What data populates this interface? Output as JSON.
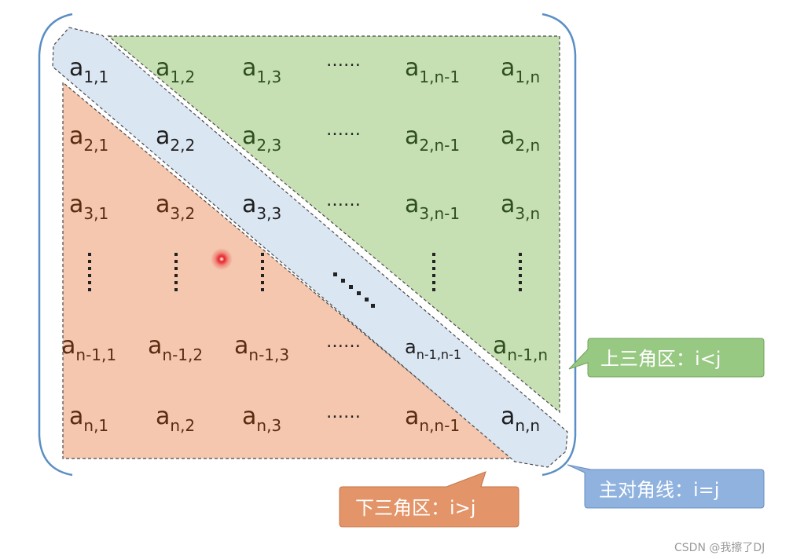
{
  "colors": {
    "upper_fill": "#c6e0b4",
    "lower_fill": "#f4c7ae",
    "diag_fill": "#dbe6f3",
    "bracket": "#5b8ec4",
    "dash": "#4a4a4a",
    "upper_text": "#2f4f1f",
    "lower_text": "#5a2d12",
    "diag_text": "#1f1f1f",
    "callout_upper": "#98c983",
    "callout_diag": "#8fb2df",
    "callout_lower": "#e39468",
    "pointer": "#e8232a"
  },
  "matrix": {
    "cells": [
      {
        "name": "cell-a-1-1",
        "base": "a",
        "sub": "1,1",
        "region": "diag"
      },
      {
        "name": "cell-a-1-2",
        "base": "a",
        "sub": "1,2",
        "region": "upper"
      },
      {
        "name": "cell-a-1-3",
        "base": "a",
        "sub": "1,3",
        "region": "upper"
      },
      {
        "name": "cell-a-1-n-1",
        "base": "a",
        "sub": "1,n-1",
        "region": "upper"
      },
      {
        "name": "cell-a-1-n",
        "base": "a",
        "sub": "1,n",
        "region": "upper"
      },
      {
        "name": "cell-a-2-1",
        "base": "a",
        "sub": "2,1",
        "region": "lower"
      },
      {
        "name": "cell-a-2-2",
        "base": "a",
        "sub": "2,2",
        "region": "diag"
      },
      {
        "name": "cell-a-2-3",
        "base": "a",
        "sub": "2,3",
        "region": "upper"
      },
      {
        "name": "cell-a-2-n-1",
        "base": "a",
        "sub": "2,n-1",
        "region": "upper"
      },
      {
        "name": "cell-a-2-n",
        "base": "a",
        "sub": "2,n",
        "region": "upper"
      },
      {
        "name": "cell-a-3-1",
        "base": "a",
        "sub": "3,1",
        "region": "lower"
      },
      {
        "name": "cell-a-3-2",
        "base": "a",
        "sub": "3,2",
        "region": "lower"
      },
      {
        "name": "cell-a-3-3",
        "base": "a",
        "sub": "3,3",
        "region": "diag"
      },
      {
        "name": "cell-a-3-n-1",
        "base": "a",
        "sub": "3,n-1",
        "region": "upper"
      },
      {
        "name": "cell-a-3-n",
        "base": "a",
        "sub": "3,n",
        "region": "upper"
      },
      {
        "name": "cell-a-n-1-1",
        "base": "a",
        "sub": "n-1,1",
        "region": "lower"
      },
      {
        "name": "cell-a-n-1-2",
        "base": "a",
        "sub": "n-1,2",
        "region": "lower"
      },
      {
        "name": "cell-a-n-1-3",
        "base": "a",
        "sub": "n-1,3",
        "region": "lower"
      },
      {
        "name": "cell-a-n-1-n-1",
        "base": "a",
        "sub": "n-1,n-1",
        "region": "diag"
      },
      {
        "name": "cell-a-n-1-n",
        "base": "a",
        "sub": "n-1,n",
        "region": "upper"
      },
      {
        "name": "cell-a-n-1",
        "base": "a",
        "sub": "n,1",
        "region": "lower"
      },
      {
        "name": "cell-a-n-2",
        "base": "a",
        "sub": "n,2",
        "region": "lower"
      },
      {
        "name": "cell-a-n-3",
        "base": "a",
        "sub": "n,3",
        "region": "lower"
      },
      {
        "name": "cell-a-n-n-1",
        "base": "a",
        "sub": "n,n-1",
        "region": "lower"
      },
      {
        "name": "cell-a-n-n",
        "base": "a",
        "sub": "n,n",
        "region": "diag"
      }
    ],
    "ellipsis": "……"
  },
  "callouts": {
    "upper": "上三角区：i<j",
    "diagonal": "主对角线：i=j",
    "lower": "下三角区：i>j"
  },
  "watermark": "CSDN @我擦了DJ"
}
